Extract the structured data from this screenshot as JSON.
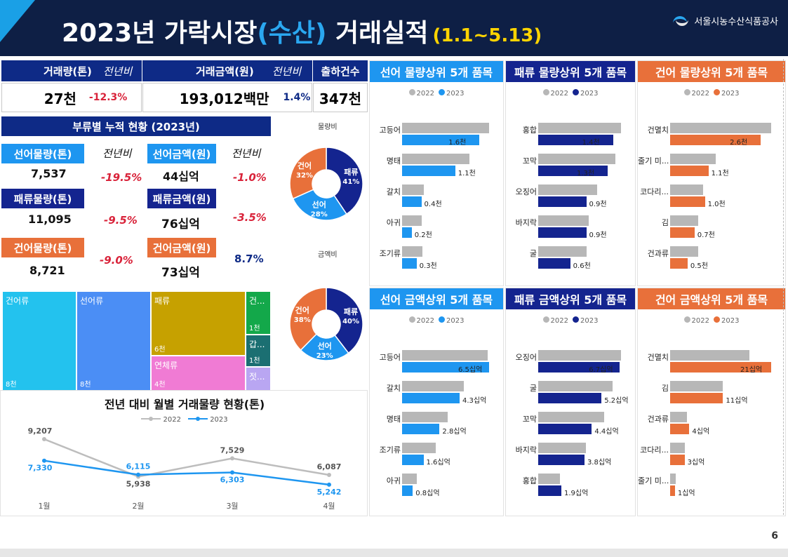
{
  "header": {
    "title_pre": "2023년 가락시장",
    "title_hl": "(수산)",
    "title_post": " 거래실적",
    "period": "(1.1~5.13)",
    "org": "서울시농수산식품공사"
  },
  "kpi": {
    "volume_label": "거래량(톤)",
    "yoy_label": "전년비",
    "amount_label": "거래금액(원)",
    "shipments_label": "출하건수",
    "volume_value": "27천",
    "volume_yoy": "-12.3%",
    "amount_value": "193,012백만",
    "amount_yoy": "1.4%",
    "shipments_value": "347천"
  },
  "category": {
    "title": "부류별 누적 현황 (2023년)",
    "yoy_label": "전년비",
    "items": [
      {
        "vol_label": "선어물량(톤)",
        "vol_value": "7,537",
        "vol_yoy": "-19.5%",
        "amt_label": "선어금액(원)",
        "amt_value": "44십억",
        "amt_yoy": "-1.0%"
      },
      {
        "vol_label": "패류물량(톤)",
        "vol_value": "11,095",
        "vol_yoy": "-9.5%",
        "amt_label": "패류금액(원)",
        "amt_value": "76십억",
        "amt_yoy": "-3.5%"
      },
      {
        "vol_label": "건어물량(톤)",
        "vol_value": "8,721",
        "vol_yoy": "-9.0%",
        "amt_label": "건어금액(원)",
        "amt_value": "73십억",
        "amt_yoy": "8.7%"
      }
    ]
  },
  "colors": {
    "fresh": "#1e96f0",
    "shell": "#14248f",
    "dried": "#e8703a",
    "gray": "#b7b7b7",
    "navy": "#0e2a86"
  },
  "chart_data": [
    {
      "type": "pie",
      "title": "물량비",
      "slices": [
        {
          "name": "패류",
          "value": 41,
          "color": "#14248f"
        },
        {
          "name": "선어",
          "value": 28,
          "color": "#1e96f0"
        },
        {
          "name": "건어",
          "value": 32,
          "color": "#e8703a"
        }
      ]
    },
    {
      "type": "pie",
      "title": "금액비",
      "slices": [
        {
          "name": "패류",
          "value": 40,
          "color": "#14248f"
        },
        {
          "name": "선어",
          "value": 23,
          "color": "#1e96f0"
        },
        {
          "name": "건어",
          "value": 38,
          "color": "#e8703a"
        }
      ]
    },
    {
      "type": "treemap",
      "items": [
        {
          "name": "건어류",
          "label": "8천",
          "color": "#23c2ee"
        },
        {
          "name": "선어류",
          "label": "8천",
          "color": "#4b8ef5"
        },
        {
          "name": "패류",
          "label": "6천",
          "color": "#c6a100"
        },
        {
          "name": "연체류",
          "label": "4천",
          "color": "#f07bd4"
        },
        {
          "name": "건...",
          "label": "1천",
          "color": "#13a84a"
        },
        {
          "name": "갑...",
          "label": "1천",
          "color": "#1b6f72"
        },
        {
          "name": "젓...",
          "label": "",
          "color": "#b9a6f2"
        }
      ]
    },
    {
      "type": "line",
      "title": "전년 대비 월별 거래물량 현황(톤)",
      "categories": [
        "1월",
        "2월",
        "3월",
        "4월"
      ],
      "series": [
        {
          "name": "2022",
          "values": [
            9207,
            5938,
            7529,
            6087
          ],
          "color": "#bdbdbd"
        },
        {
          "name": "2023",
          "values": [
            7330,
            6115,
            6303,
            5242
          ],
          "color": "#1e96f0"
        }
      ]
    },
    {
      "type": "bar",
      "title": "선어 물량상위 5개 품목",
      "theme": "fresh",
      "categories": [
        "고등어",
        "명태",
        "갈치",
        "아귀",
        "조기류"
      ],
      "series": [
        {
          "name": "2022",
          "values": [
            1.8,
            1.4,
            0.45,
            0.4,
            0.42
          ]
        },
        {
          "name": "2023",
          "values": [
            1.6,
            1.1,
            0.4,
            0.2,
            0.3
          ]
        }
      ],
      "labels": [
        "1.6천",
        "1.1천",
        "0.4천",
        "0.2천",
        "0.3천"
      ]
    },
    {
      "type": "bar",
      "title": "패류 물량상위 5개 품목",
      "theme": "shell",
      "categories": [
        "홍합",
        "꼬막",
        "오징어",
        "바지락",
        "굴"
      ],
      "series": [
        {
          "name": "2022",
          "values": [
            1.55,
            1.45,
            1.1,
            0.95,
            0.9
          ]
        },
        {
          "name": "2023",
          "values": [
            1.4,
            1.3,
            0.9,
            0.9,
            0.6
          ]
        }
      ],
      "labels": [
        "1.4천",
        "1.3천",
        "0.9천",
        "0.9천",
        "0.6천"
      ]
    },
    {
      "type": "bar",
      "title": "건어 물량상위 5개 품목",
      "theme": "dried",
      "categories": [
        "건멸치",
        "줄기 미...",
        "코다리...",
        "김",
        "건과류"
      ],
      "series": [
        {
          "name": "2022",
          "values": [
            2.9,
            1.3,
            0.95,
            0.8,
            0.8
          ]
        },
        {
          "name": "2023",
          "values": [
            2.6,
            1.1,
            1.0,
            0.7,
            0.5
          ]
        }
      ],
      "labels": [
        "2.6천",
        "1.1천",
        "1.0천",
        "0.7천",
        "0.5천"
      ]
    },
    {
      "type": "bar",
      "title": "선어 금액상위 5개 품목",
      "theme": "fresh",
      "categories": [
        "고등어",
        "갈치",
        "명태",
        "조기류",
        "아귀"
      ],
      "series": [
        {
          "name": "2022",
          "values": [
            6.4,
            4.6,
            3.4,
            2.5,
            1.1
          ]
        },
        {
          "name": "2023",
          "values": [
            6.5,
            4.3,
            2.8,
            1.6,
            0.8
          ]
        }
      ],
      "labels": [
        "6.5십억",
        "4.3십억",
        "2.8십억",
        "1.6십억",
        "0.8십억"
      ]
    },
    {
      "type": "bar",
      "title": "패류 금액상위 5개 품목",
      "theme": "shell",
      "categories": [
        "오징어",
        "굴",
        "꼬막",
        "바지락",
        "홍합"
      ],
      "series": [
        {
          "name": "2022",
          "values": [
            6.8,
            6.1,
            5.4,
            3.9,
            1.8
          ]
        },
        {
          "name": "2023",
          "values": [
            6.7,
            5.2,
            4.4,
            3.8,
            1.9
          ]
        }
      ],
      "labels": [
        "6.7십억",
        "5.2십억",
        "4.4십억",
        "3.8십억",
        "1.9십억"
      ]
    },
    {
      "type": "bar",
      "title": "건어 금액상위 5개 품목",
      "theme": "dried",
      "categories": [
        "건멸치",
        "김",
        "건과류",
        "코다리...",
        "줄기 미..."
      ],
      "series": [
        {
          "name": "2022",
          "values": [
            16.5,
            11.0,
            3.5,
            3.0,
            1.2
          ]
        },
        {
          "name": "2023",
          "values": [
            21,
            11,
            4,
            3,
            1
          ]
        }
      ],
      "labels": [
        "21십억",
        "11십억",
        "4십억",
        "3십억",
        "1십억"
      ]
    }
  ],
  "legend": {
    "y1": "2022",
    "y2": "2023"
  },
  "page_number": "6"
}
